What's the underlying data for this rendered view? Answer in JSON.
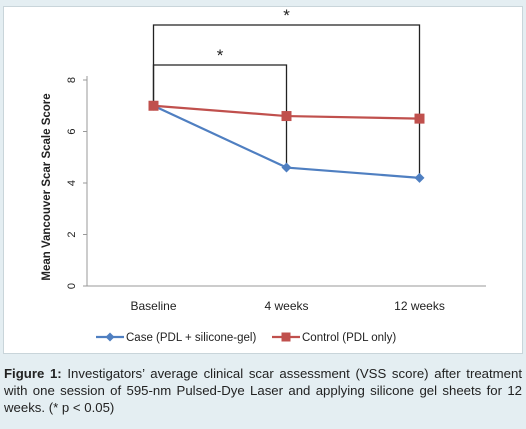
{
  "chart_data": {
    "type": "line",
    "categories": [
      "Baseline",
      "4 weeks",
      "12 weeks"
    ],
    "series": [
      {
        "name": "Case (PDL + silicone-gel)",
        "values": [
          7.0,
          4.6,
          4.2
        ],
        "color": "#4f7fc1",
        "marker": "diamond"
      },
      {
        "name": "Control (PDL only)",
        "values": [
          7.0,
          6.6,
          6.5
        ],
        "color": "#c0504d",
        "marker": "square"
      }
    ],
    "ylabel": "Mean Vancouver Scar Scale Score",
    "ylim": [
      0,
      8
    ],
    "yticks": [
      0,
      2,
      4,
      6,
      8
    ],
    "grid": false,
    "legend_position": "bottom",
    "annotations": [
      {
        "text": "*",
        "from": "Baseline",
        "to": "12 weeks"
      },
      {
        "text": "*",
        "from": "Baseline",
        "to": "4 weeks"
      }
    ]
  },
  "caption": {
    "label": "Figure 1:",
    "text": " Investigators’ average clinical scar assessment (VSS score) after treatment with one session of 595-nm Pulsed-Dye Laser and applying silicone gel sheets for 12 weeks. (* p < 0.05)"
  }
}
